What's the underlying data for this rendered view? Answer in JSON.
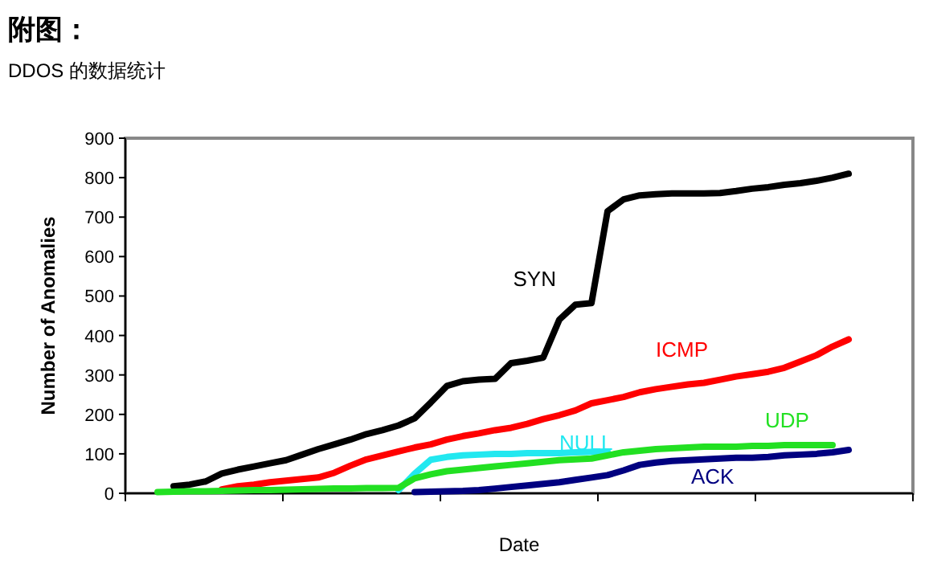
{
  "chart_data": {
    "type": "line",
    "title": "附图：",
    "subtitle": "DDOS 的数据统计",
    "xlabel": "Date",
    "ylabel": "Number of Anomalies",
    "categories": [
      null,
      null,
      null,
      null,
      null,
      null,
      null,
      null,
      null,
      null,
      null,
      null,
      null,
      null,
      null,
      null,
      null,
      null,
      null,
      null,
      null,
      null,
      null,
      null,
      null,
      null,
      null,
      null,
      null,
      null,
      null,
      null,
      null,
      null,
      null,
      null,
      null,
      null,
      null,
      null,
      null,
      null,
      null,
      null
    ],
    "ylim": [
      0,
      900
    ],
    "yticks": [
      0,
      100,
      200,
      300,
      400,
      500,
      600,
      700,
      800,
      900
    ],
    "grid": false,
    "legend": false,
    "line_style": "solid",
    "marker": "none",
    "series": [
      {
        "name": "SYN",
        "color": "#000000",
        "values": [
          null,
          18,
          22,
          30,
          50,
          60,
          68,
          76,
          84,
          98,
          112,
          124,
          136,
          150,
          160,
          172,
          190,
          230,
          272,
          284,
          288,
          290,
          330,
          336,
          344,
          440,
          478,
          482,
          715,
          745,
          755,
          758,
          760,
          760,
          760,
          761,
          766,
          772,
          776,
          782,
          786,
          792,
          800,
          810
        ]
      },
      {
        "name": "ICMP",
        "color": "#ff0000",
        "values": [
          null,
          null,
          null,
          null,
          10,
          18,
          22,
          28,
          32,
          36,
          40,
          52,
          70,
          86,
          96,
          106,
          116,
          124,
          136,
          145,
          152,
          160,
          166,
          176,
          188,
          198,
          210,
          228,
          236,
          244,
          256,
          264,
          270,
          276,
          280,
          288,
          296,
          302,
          308,
          318,
          334,
          350,
          372,
          390
        ]
      },
      {
        "name": "NULL",
        "color": "#22e8f0",
        "values": [
          null,
          null,
          null,
          null,
          null,
          null,
          null,
          null,
          null,
          null,
          null,
          null,
          null,
          null,
          null,
          8,
          50,
          85,
          92,
          96,
          98,
          100,
          100,
          102,
          102,
          102,
          104,
          105,
          106,
          null,
          null,
          null,
          null,
          null,
          null,
          null,
          null,
          null,
          null,
          null,
          null,
          null,
          null,
          null
        ]
      },
      {
        "name": "UDP",
        "color": "#22e022",
        "values": [
          3,
          4,
          5,
          5,
          6,
          7,
          8,
          8,
          9,
          10,
          11,
          12,
          12,
          13,
          13,
          14,
          38,
          48,
          56,
          60,
          64,
          68,
          72,
          76,
          80,
          84,
          86,
          88,
          96,
          104,
          108,
          112,
          114,
          116,
          118,
          118,
          118,
          120,
          120,
          122,
          122,
          122,
          122,
          null
        ]
      },
      {
        "name": "ACK",
        "color": "#000080",
        "values": [
          null,
          null,
          null,
          null,
          null,
          null,
          null,
          null,
          null,
          null,
          null,
          null,
          null,
          null,
          null,
          null,
          3,
          4,
          5,
          6,
          8,
          12,
          16,
          20,
          24,
          28,
          34,
          40,
          46,
          58,
          72,
          78,
          82,
          84,
          86,
          88,
          90,
          90,
          92,
          96,
          98,
          100,
          104,
          110
        ]
      }
    ]
  }
}
